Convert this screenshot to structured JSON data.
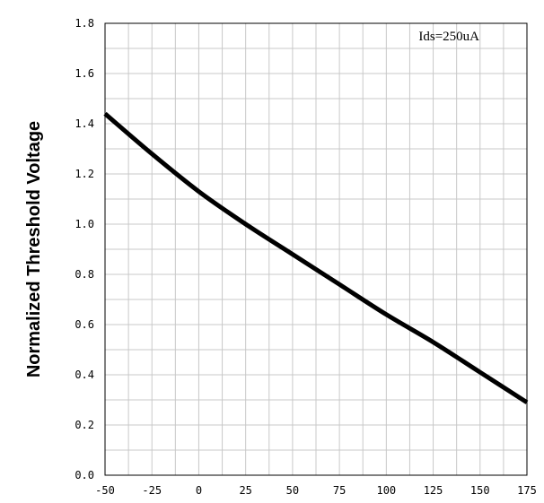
{
  "chart_data": {
    "type": "line",
    "title": "",
    "xlabel": "",
    "ylabel": "Normalized Threshold Voltage",
    "xlim": [
      -50,
      175
    ],
    "ylim": [
      0.0,
      1.8
    ],
    "x_ticks": [
      "-50",
      "-25",
      "0",
      "25",
      "50",
      "75",
      "100",
      "125",
      "150",
      "175"
    ],
    "y_ticks": [
      "0.0",
      "0.2",
      "0.4",
      "0.6",
      "0.8",
      "1.0",
      "1.2",
      "1.4",
      "1.6",
      "1.8"
    ],
    "grid": true,
    "annotation": "Ids=250uA",
    "series": [
      {
        "x": [
          -50,
          -25,
          0,
          25,
          50,
          75,
          100,
          125,
          150,
          175
        ],
        "y": [
          1.44,
          1.28,
          1.13,
          1.0,
          0.88,
          0.76,
          0.64,
          0.53,
          0.41,
          0.29
        ]
      }
    ],
    "colors": {
      "line": "#000000",
      "grid": "#c8c8c8",
      "frame": "#000000"
    }
  }
}
